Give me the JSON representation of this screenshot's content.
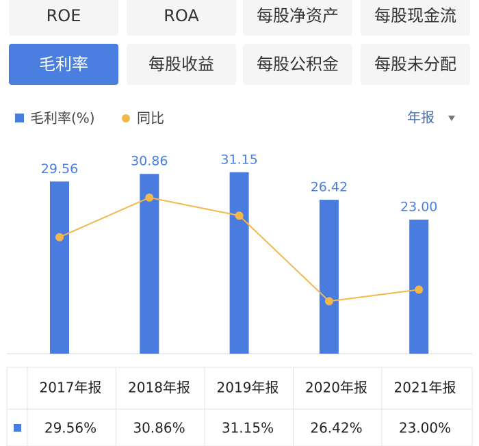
{
  "tabs": {
    "items": [
      "ROE",
      "ROA",
      "每股净资产",
      "每股现金流",
      "毛利率",
      "每股收益",
      "每股公积金",
      "每股未分配"
    ],
    "active": 4
  },
  "period_selector": "年报",
  "chart_data": {
    "type": "bar",
    "categories": [
      "2017年报",
      "2018年报",
      "2019年报",
      "2020年报",
      "2021年报"
    ],
    "ylim": [
      0,
      35
    ],
    "legend": "top-left",
    "series": [
      {
        "name": "毛利率(%)",
        "type": "bar",
        "color": "#4a7bdf",
        "values": [
          29.56,
          30.86,
          31.15,
          26.42,
          23.0
        ],
        "value_labels": [
          "29.56",
          "30.86",
          "31.15",
          "26.42",
          "23.00"
        ]
      },
      {
        "name": "同比",
        "type": "line",
        "color": "#f2b84b",
        "values": [
          20.0,
          26.8,
          23.7,
          9.0,
          11.0
        ]
      }
    ]
  },
  "table": {
    "rows": [
      [
        "29.56%",
        "30.86%",
        "31.15%",
        "26.42%",
        "23.00%"
      ]
    ]
  }
}
